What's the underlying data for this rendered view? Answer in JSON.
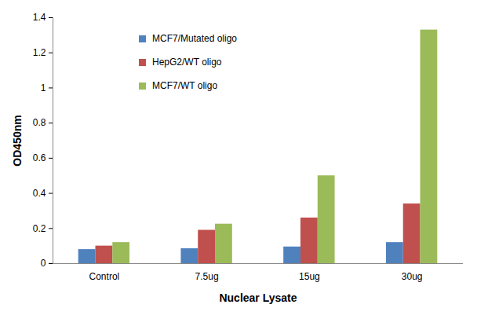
{
  "chart_data": {
    "type": "bar",
    "x_label": "Nuclear Lysate",
    "y_label": "OD450nm",
    "categories": [
      "Control",
      "7.5ug",
      "15ug",
      "30ug"
    ],
    "series": [
      {
        "name": "MCF7/Mutated oligo",
        "color": "#4F81BD",
        "values": [
          0.08,
          0.085,
          0.095,
          0.12
        ]
      },
      {
        "name": "HepG2/WT oligo",
        "color": "#C0504D",
        "values": [
          0.1,
          0.19,
          0.26,
          0.34
        ]
      },
      {
        "name": "MCF7/WT oligo",
        "color": "#9BBB59",
        "values": [
          0.12,
          0.225,
          0.5,
          1.33
        ]
      }
    ],
    "ylim": [
      0,
      1.4
    ],
    "yticks": [
      0,
      0.2,
      0.4,
      0.6,
      0.8,
      1,
      1.2,
      1.4
    ],
    "grid": false,
    "legend": "top-left"
  }
}
